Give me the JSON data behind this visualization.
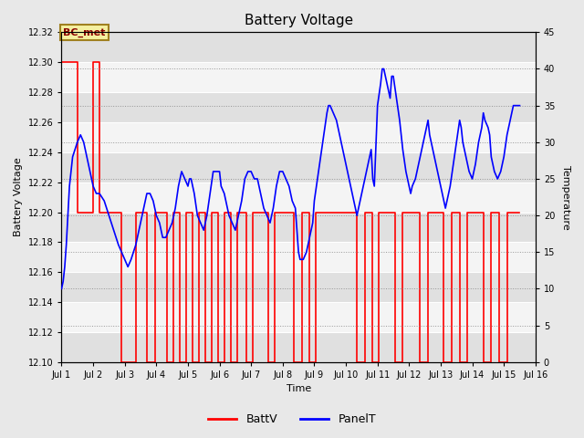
{
  "title": "Battery Voltage",
  "xlabel": "Time",
  "ylabel_left": "Battery Voltage",
  "ylabel_right": "Temperature",
  "ylim_left": [
    12.1,
    12.32
  ],
  "ylim_right": [
    0,
    45
  ],
  "yticks_left": [
    12.1,
    12.12,
    12.14,
    12.16,
    12.18,
    12.2,
    12.22,
    12.24,
    12.26,
    12.28,
    12.3,
    12.32
  ],
  "yticks_right": [
    0,
    5,
    10,
    15,
    20,
    25,
    30,
    35,
    40,
    45
  ],
  "annotation": "BC_met",
  "legend_labels": [
    "BattV",
    "PanelT"
  ],
  "batt_color": "red",
  "panel_color": "blue",
  "fig_bg": "#e8e8e8",
  "plot_bg": "#f0f0f0",
  "band_colors": [
    "#e0e0e0",
    "#f4f4f4"
  ],
  "batt_v": [
    [
      1.0,
      12.2
    ],
    [
      1.0,
      12.3
    ],
    [
      1.5,
      12.3
    ],
    [
      1.5,
      12.2
    ],
    [
      2.0,
      12.2
    ],
    [
      2.0,
      12.3
    ],
    [
      2.2,
      12.3
    ],
    [
      2.2,
      12.2
    ],
    [
      2.9,
      12.2
    ],
    [
      2.9,
      12.1
    ],
    [
      3.35,
      12.1
    ],
    [
      3.35,
      12.2
    ],
    [
      3.7,
      12.2
    ],
    [
      3.7,
      12.1
    ],
    [
      3.95,
      12.1
    ],
    [
      3.95,
      12.2
    ],
    [
      4.35,
      12.2
    ],
    [
      4.35,
      12.1
    ],
    [
      4.55,
      12.1
    ],
    [
      4.55,
      12.2
    ],
    [
      4.75,
      12.2
    ],
    [
      4.75,
      12.1
    ],
    [
      4.95,
      12.1
    ],
    [
      4.95,
      12.2
    ],
    [
      5.15,
      12.2
    ],
    [
      5.15,
      12.1
    ],
    [
      5.35,
      12.1
    ],
    [
      5.35,
      12.2
    ],
    [
      5.55,
      12.2
    ],
    [
      5.55,
      12.1
    ],
    [
      5.75,
      12.1
    ],
    [
      5.75,
      12.2
    ],
    [
      5.95,
      12.2
    ],
    [
      5.95,
      12.1
    ],
    [
      6.15,
      12.1
    ],
    [
      6.15,
      12.2
    ],
    [
      6.35,
      12.2
    ],
    [
      6.35,
      12.1
    ],
    [
      6.55,
      12.1
    ],
    [
      6.55,
      12.2
    ],
    [
      6.85,
      12.2
    ],
    [
      6.85,
      12.1
    ],
    [
      7.05,
      12.1
    ],
    [
      7.05,
      12.2
    ],
    [
      7.55,
      12.2
    ],
    [
      7.55,
      12.1
    ],
    [
      7.75,
      12.1
    ],
    [
      7.75,
      12.2
    ],
    [
      8.35,
      12.2
    ],
    [
      8.35,
      12.1
    ],
    [
      8.6,
      12.1
    ],
    [
      8.6,
      12.2
    ],
    [
      8.85,
      12.2
    ],
    [
      8.85,
      12.1
    ],
    [
      9.05,
      12.1
    ],
    [
      9.05,
      12.2
    ],
    [
      10.35,
      12.2
    ],
    [
      10.35,
      12.1
    ],
    [
      10.6,
      12.1
    ],
    [
      10.6,
      12.2
    ],
    [
      10.85,
      12.2
    ],
    [
      10.85,
      12.1
    ],
    [
      11.05,
      12.1
    ],
    [
      11.05,
      12.2
    ],
    [
      11.55,
      12.2
    ],
    [
      11.55,
      12.1
    ],
    [
      11.8,
      12.1
    ],
    [
      11.8,
      12.2
    ],
    [
      12.35,
      12.2
    ],
    [
      12.35,
      12.1
    ],
    [
      12.6,
      12.1
    ],
    [
      12.6,
      12.2
    ],
    [
      13.1,
      12.2
    ],
    [
      13.1,
      12.1
    ],
    [
      13.35,
      12.1
    ],
    [
      13.35,
      12.2
    ],
    [
      13.6,
      12.2
    ],
    [
      13.6,
      12.1
    ],
    [
      13.85,
      12.1
    ],
    [
      13.85,
      12.2
    ],
    [
      14.35,
      12.2
    ],
    [
      14.35,
      12.1
    ],
    [
      14.6,
      12.1
    ],
    [
      14.6,
      12.2
    ],
    [
      14.85,
      12.2
    ],
    [
      14.85,
      12.1
    ],
    [
      15.1,
      12.1
    ],
    [
      15.1,
      12.2
    ],
    [
      15.5,
      12.2
    ]
  ],
  "panel_t": [
    [
      1.0,
      10
    ],
    [
      1.05,
      11
    ],
    [
      1.1,
      13
    ],
    [
      1.15,
      16
    ],
    [
      1.25,
      24
    ],
    [
      1.35,
      28
    ],
    [
      1.5,
      30
    ],
    [
      1.6,
      31
    ],
    [
      1.7,
      30
    ],
    [
      1.8,
      28
    ],
    [
      1.9,
      26
    ],
    [
      2.0,
      24
    ],
    [
      2.1,
      23
    ],
    [
      2.2,
      23
    ],
    [
      2.35,
      22
    ],
    [
      2.5,
      20
    ],
    [
      2.65,
      18
    ],
    [
      2.8,
      16
    ],
    [
      2.9,
      15
    ],
    [
      3.0,
      14
    ],
    [
      3.1,
      13
    ],
    [
      3.2,
      14
    ],
    [
      3.35,
      16
    ],
    [
      3.5,
      19
    ],
    [
      3.6,
      21
    ],
    [
      3.7,
      23
    ],
    [
      3.8,
      23
    ],
    [
      3.9,
      22
    ],
    [
      4.0,
      20
    ],
    [
      4.1,
      19
    ],
    [
      4.2,
      17
    ],
    [
      4.3,
      17
    ],
    [
      4.5,
      19
    ],
    [
      4.6,
      21
    ],
    [
      4.7,
      24
    ],
    [
      4.8,
      26
    ],
    [
      4.9,
      25
    ],
    [
      5.0,
      24
    ],
    [
      5.05,
      25
    ],
    [
      5.1,
      25
    ],
    [
      5.2,
      23
    ],
    [
      5.3,
      20
    ],
    [
      5.4,
      19
    ],
    [
      5.5,
      18
    ],
    [
      5.6,
      20
    ],
    [
      5.7,
      23
    ],
    [
      5.8,
      26
    ],
    [
      5.9,
      26
    ],
    [
      6.0,
      26
    ],
    [
      6.05,
      24
    ],
    [
      6.15,
      23
    ],
    [
      6.2,
      22
    ],
    [
      6.3,
      20
    ],
    [
      6.4,
      19
    ],
    [
      6.5,
      18
    ],
    [
      6.6,
      20
    ],
    [
      6.7,
      22
    ],
    [
      6.8,
      25
    ],
    [
      6.9,
      26
    ],
    [
      7.0,
      26
    ],
    [
      7.1,
      25
    ],
    [
      7.2,
      25
    ],
    [
      7.25,
      24
    ],
    [
      7.3,
      23
    ],
    [
      7.4,
      21
    ],
    [
      7.5,
      20
    ],
    [
      7.6,
      19
    ],
    [
      7.7,
      21
    ],
    [
      7.8,
      24
    ],
    [
      7.9,
      26
    ],
    [
      8.0,
      26
    ],
    [
      8.1,
      25
    ],
    [
      8.2,
      24
    ],
    [
      8.3,
      22
    ],
    [
      8.4,
      21
    ],
    [
      8.5,
      15
    ],
    [
      8.55,
      14
    ],
    [
      8.65,
      14
    ],
    [
      8.75,
      15
    ],
    [
      8.85,
      17
    ],
    [
      8.95,
      19
    ],
    [
      9.0,
      22
    ],
    [
      9.1,
      25
    ],
    [
      9.2,
      28
    ],
    [
      9.3,
      31
    ],
    [
      9.4,
      34
    ],
    [
      9.45,
      35
    ],
    [
      9.5,
      35
    ],
    [
      9.6,
      34
    ],
    [
      9.7,
      33
    ],
    [
      9.8,
      31
    ],
    [
      9.9,
      29
    ],
    [
      10.0,
      27
    ],
    [
      10.1,
      25
    ],
    [
      10.2,
      23
    ],
    [
      10.3,
      21
    ],
    [
      10.35,
      20
    ],
    [
      10.4,
      21
    ],
    [
      10.5,
      23
    ],
    [
      10.6,
      25
    ],
    [
      10.7,
      27
    ],
    [
      10.8,
      29
    ],
    [
      10.85,
      25
    ],
    [
      10.9,
      24
    ],
    [
      11.0,
      35
    ],
    [
      11.1,
      38
    ],
    [
      11.15,
      40
    ],
    [
      11.2,
      40
    ],
    [
      11.3,
      38
    ],
    [
      11.4,
      36
    ],
    [
      11.45,
      39
    ],
    [
      11.5,
      39
    ],
    [
      11.6,
      36
    ],
    [
      11.7,
      33
    ],
    [
      11.8,
      29
    ],
    [
      11.9,
      26
    ],
    [
      12.0,
      24
    ],
    [
      12.05,
      23
    ],
    [
      12.1,
      24
    ],
    [
      12.2,
      25
    ],
    [
      12.3,
      27
    ],
    [
      12.4,
      29
    ],
    [
      12.5,
      31
    ],
    [
      12.6,
      33
    ],
    [
      12.65,
      31
    ],
    [
      12.7,
      30
    ],
    [
      12.8,
      28
    ],
    [
      12.9,
      26
    ],
    [
      13.0,
      24
    ],
    [
      13.1,
      22
    ],
    [
      13.15,
      21
    ],
    [
      13.2,
      22
    ],
    [
      13.3,
      24
    ],
    [
      13.4,
      27
    ],
    [
      13.5,
      30
    ],
    [
      13.6,
      33
    ],
    [
      13.65,
      32
    ],
    [
      13.7,
      30
    ],
    [
      13.8,
      28
    ],
    [
      13.9,
      26
    ],
    [
      14.0,
      25
    ],
    [
      14.1,
      27
    ],
    [
      14.2,
      30
    ],
    [
      14.3,
      32
    ],
    [
      14.35,
      34
    ],
    [
      14.4,
      33
    ],
    [
      14.5,
      32
    ],
    [
      14.55,
      31
    ],
    [
      14.6,
      28
    ],
    [
      14.7,
      26
    ],
    [
      14.8,
      25
    ],
    [
      14.9,
      26
    ],
    [
      15.0,
      28
    ],
    [
      15.1,
      31
    ],
    [
      15.2,
      33
    ],
    [
      15.3,
      35
    ],
    [
      15.4,
      35
    ],
    [
      15.5,
      35
    ]
  ],
  "xlim": [
    1.0,
    15.7
  ],
  "xticks": [
    1,
    2,
    3,
    4,
    5,
    6,
    7,
    8,
    9,
    10,
    11,
    12,
    13,
    14,
    15,
    16
  ],
  "xticklabels": [
    "Jul 1",
    "Jul 2",
    "Jul 3",
    "Jul 4",
    "Jul 5",
    "Jul 6",
    "Jul 7",
    "Jul 8",
    "Jul 9",
    "Jul 10",
    "Jul 11",
    "Jul 12",
    "Jul 13",
    "Jul 14",
    "Jul 15",
    "Jul 16"
  ]
}
